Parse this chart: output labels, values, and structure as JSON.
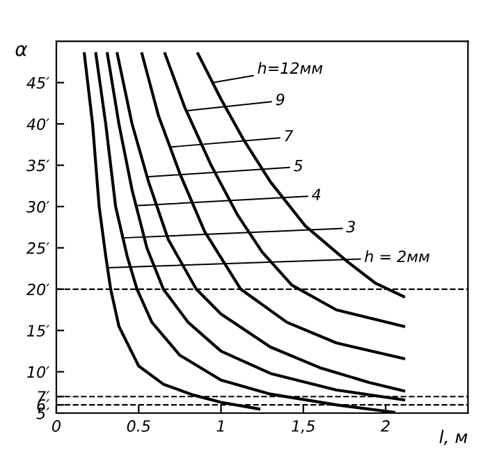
{
  "chart_data": {
    "type": "line",
    "xlabel": "l, м",
    "ylabel": "α",
    "xlim": [
      0,
      2.5
    ],
    "ylim": [
      5,
      50
    ],
    "xticks": [
      0,
      {
        "value": 0.5,
        "label": "0.5"
      },
      1,
      {
        "value": 1.5,
        "label": "1,5"
      },
      2
    ],
    "yticks": [
      {
        "value": 5,
        "label": "5′"
      },
      {
        "value": 6,
        "label": "6′"
      },
      {
        "value": 7,
        "label": "7′"
      },
      {
        "value": 10,
        "label": "10′"
      },
      {
        "value": 15,
        "label": "15′"
      },
      {
        "value": 20,
        "label": "20′"
      },
      {
        "value": 25,
        "label": "25′"
      },
      {
        "value": 30,
        "label": "30′"
      },
      {
        "value": 35,
        "label": "35′"
      },
      {
        "value": 40,
        "label": "40′"
      },
      {
        "value": 45,
        "label": "45′"
      }
    ],
    "annotations": [
      {
        "text": "h = 2мм",
        "x": 0.31,
        "y": 22.6
      },
      {
        "text": "3",
        "x": 0.4,
        "y": 26.2
      },
      {
        "text": "4",
        "x": 0.48,
        "y": 30.1
      },
      {
        "text": "5",
        "x": 0.55,
        "y": 33.6
      },
      {
        "text": "7",
        "x": 0.69,
        "y": 37.2
      },
      {
        "text": "9",
        "x": 0.79,
        "y": 41.6
      },
      {
        "text": "h=12мм",
        "x": 0.95,
        "y": 45
      }
    ],
    "grid": false,
    "legend": false,
    "marker": "none",
    "line_style": "solid",
    "ref_lines": [
      {
        "axis": "y",
        "value": 20,
        "line_style": "dashed",
        "color": "#000000"
      },
      {
        "axis": "y",
        "value": 7,
        "line_style": "dashed",
        "color": "#000000"
      },
      {
        "axis": "y",
        "value": 6,
        "line_style": "dashed",
        "color": "#000000"
      }
    ],
    "series": [
      {
        "color": "#000000",
        "x": [
          0.17,
          0.22,
          0.26,
          0.3,
          0.33,
          0.38,
          0.5,
          0.65,
          0.83,
          1.0,
          1.23
        ],
        "values": [
          48.5,
          40,
          30,
          24,
          20,
          15.5,
          10.7,
          8.5,
          7.2,
          6.3,
          5.5
        ]
      },
      {
        "color": "#000000",
        "x": [
          0.24,
          0.3,
          0.36,
          0.43,
          0.49,
          0.58,
          0.75,
          1.0,
          1.3,
          1.7,
          2.05
        ],
        "values": [
          48.5,
          40,
          30,
          24,
          20,
          16,
          12,
          9,
          7.3,
          6,
          5.1
        ]
      },
      {
        "color": "#000000",
        "x": [
          0.31,
          0.38,
          0.46,
          0.55,
          0.65,
          0.8,
          1.0,
          1.3,
          1.7,
          2.11
        ],
        "values": [
          48.5,
          40,
          32,
          25,
          20,
          16,
          12.5,
          9.8,
          7.8,
          6.6
        ]
      },
      {
        "color": "#000000",
        "x": [
          0.37,
          0.46,
          0.56,
          0.68,
          0.85,
          1.0,
          1.3,
          1.6,
          1.9,
          2.11
        ],
        "values": [
          48.5,
          40,
          33,
          26,
          20,
          17,
          13,
          10.5,
          8.7,
          7.7
        ]
      },
      {
        "color": "#000000",
        "x": [
          0.52,
          0.62,
          0.75,
          0.9,
          1.12,
          1.4,
          1.7,
          2.11
        ],
        "values": [
          48.5,
          41,
          34,
          27,
          20,
          16,
          13.5,
          11.6
        ]
      },
      {
        "color": "#000000",
        "x": [
          0.66,
          0.78,
          0.94,
          1.1,
          1.25,
          1.43,
          1.7,
          2.11
        ],
        "values": [
          48.5,
          42,
          35,
          29,
          24.5,
          20.5,
          17.5,
          15.5
        ]
      },
      {
        "color": "#000000",
        "x": [
          0.86,
          1.0,
          1.14,
          1.3,
          1.51,
          1.77,
          1.94,
          2.11
        ],
        "values": [
          48.5,
          43,
          38,
          33,
          27.7,
          23.3,
          20.7,
          19.1
        ]
      }
    ]
  }
}
